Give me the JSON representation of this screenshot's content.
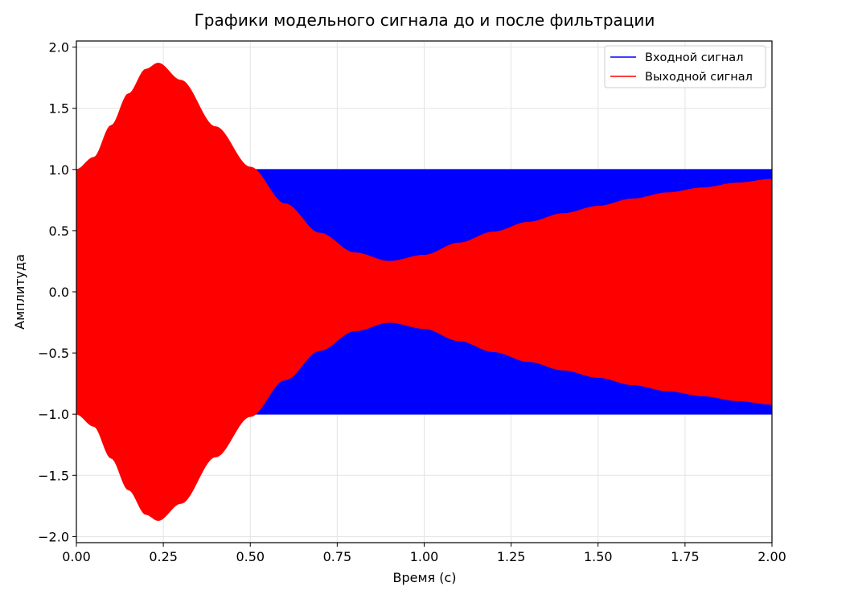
{
  "chart_data": {
    "type": "line",
    "title": "Графики модельного сигнала до и после фильтрации",
    "xlabel": "Время (с)",
    "ylabel": "Амплитуда",
    "xlim": [
      0,
      2
    ],
    "ylim": [
      -2.05,
      2.05
    ],
    "x_ticks": [
      0.0,
      0.25,
      0.5,
      0.75,
      1.0,
      1.25,
      1.5,
      1.75,
      2.0
    ],
    "x_tick_labels": [
      "0.00",
      "0.25",
      "0.50",
      "0.75",
      "1.00",
      "1.25",
      "1.50",
      "1.75",
      "2.00"
    ],
    "y_ticks": [
      -2.0,
      -1.5,
      -1.0,
      -0.5,
      0.0,
      0.5,
      1.0,
      1.5,
      2.0
    ],
    "y_tick_labels": [
      "−2.0",
      "−1.5",
      "−1.0",
      "−0.5",
      "0.0",
      "0.5",
      "1.0",
      "1.5",
      "2.0"
    ],
    "grid": true,
    "legend_position": "top-right",
    "series": [
      {
        "name": "Входной сигнал",
        "color": "#0000ff",
        "envelope_x": [
          0.0,
          0.1,
          0.2,
          0.3,
          0.4,
          0.5,
          0.6,
          0.7,
          0.8,
          0.9,
          1.0,
          1.1,
          1.2,
          1.3,
          1.4,
          1.5,
          1.6,
          1.7,
          1.8,
          1.9,
          2.0
        ],
        "envelope_amplitude": [
          1.0,
          1.0,
          1.0,
          1.0,
          1.0,
          1.0,
          1.0,
          1.0,
          1.0,
          1.0,
          1.0,
          1.0,
          1.0,
          1.0,
          1.0,
          1.0,
          1.0,
          1.0,
          1.0,
          1.0,
          1.0
        ]
      },
      {
        "name": "Выходной сигнал",
        "color": "#ff0000",
        "envelope_x": [
          0.0,
          0.05,
          0.1,
          0.15,
          0.2,
          0.235,
          0.3,
          0.4,
          0.5,
          0.6,
          0.7,
          0.8,
          0.9,
          1.0,
          1.1,
          1.2,
          1.3,
          1.4,
          1.5,
          1.6,
          1.7,
          1.8,
          1.9,
          2.0
        ],
        "envelope_amplitude": [
          1.0,
          1.1,
          1.36,
          1.62,
          1.82,
          1.87,
          1.73,
          1.35,
          1.02,
          0.72,
          0.48,
          0.32,
          0.25,
          0.3,
          0.4,
          0.49,
          0.57,
          0.64,
          0.7,
          0.76,
          0.81,
          0.85,
          0.89,
          0.92
        ]
      }
    ]
  }
}
